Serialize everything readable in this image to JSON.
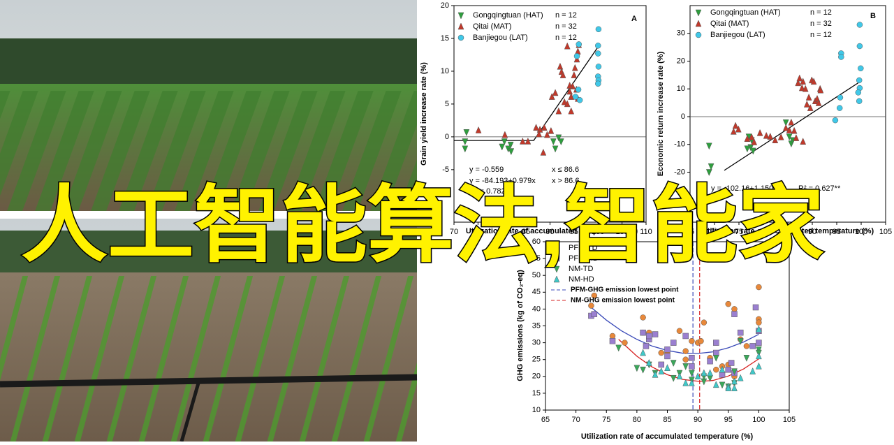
{
  "overlay_text": "人工智能算法,智能家",
  "chart_data": [
    {
      "type": "scatter",
      "panel_label": "A",
      "x_label": "Utilization rate of accumulated temperature (%)",
      "y_label": "Grain yield increase rate (%)",
      "xlim": [
        70,
        110
      ],
      "xticks": [
        70,
        75,
        80,
        85,
        90,
        95,
        100,
        105,
        110
      ],
      "ylim": [
        -13,
        20
      ],
      "yticks": [
        -5,
        0,
        5,
        10,
        15,
        20
      ],
      "series": [
        {
          "name": "Gongqingtuan (HAT)",
          "n": "n = 12",
          "color": "#2e9e3e",
          "marker": "down",
          "x": [
            72.6,
            72.3,
            72.3,
            80.5,
            81.8,
            81.3,
            90.7,
            91.1,
            91.8,
            92.3,
            81.9,
            80.0
          ],
          "values": [
            0.7,
            -0.7,
            -1.8,
            -0.7,
            -1.2,
            -1.8,
            -0.7,
            -1.8,
            -0.1,
            -0.7,
            -2.2,
            -1.5
          ]
        },
        {
          "name": "Qitai (MAT)",
          "n": "n = 32",
          "color": "#c0392b",
          "marker": "up",
          "x": [
            75.1,
            80.6,
            84.3,
            85.4,
            87.1,
            87.9,
            88.8,
            89.4,
            90.2,
            88.6,
            91.1,
            92.1,
            92.4,
            93,
            93.6,
            94.1,
            94.4,
            94.7,
            95,
            95.5,
            95.6,
            95.8,
            96,
            94.4,
            95.2,
            94.1,
            92.7,
            90.4,
            91.8,
            93.6,
            95.8,
            87.7
          ],
          "values": [
            1,
            0.3,
            -0.7,
            -0.7,
            1.4,
            1.1,
            1.4,
            0.3,
            0.9,
            -2.4,
            6.7,
            10.7,
            9.9,
            5.3,
            13.8,
            6.9,
            3.9,
            7.7,
            9.4,
            7.2,
            11.8,
            5.8,
            14,
            6.1,
            10.5,
            7.8,
            9.4,
            6.1,
            3.9,
            5,
            13,
            0.4
          ]
        },
        {
          "name": "Banjiegou (LAT)",
          "n": "n = 12",
          "color": "#40c8e8",
          "marker": "circle",
          "x": [
            100.1,
            100,
            100,
            100.1,
            100,
            100.1,
            100,
            96,
            95.6,
            95.3,
            96.2,
            95.9
          ],
          "values": [
            16.4,
            13.9,
            12.7,
            10.7,
            9.2,
            8.6,
            8.1,
            14.1,
            12.3,
            6.1,
            5.6,
            7.2
          ]
        }
      ],
      "fit": {
        "color": "#000000",
        "x": [
          70,
          86.6,
          100
        ],
        "values": [
          -0.559,
          -0.559,
          13.707
        ]
      },
      "annotations": [
        "y = -0.559",
        "x ≤ 86.6",
        "y = -84.193+0.979x",
        "x > 86.6",
        "R² = 0.782**"
      ]
    },
    {
      "type": "scatter",
      "panel_label": "B",
      "x_label": "Utilization rate of accumulated temperature (%)",
      "y_label": "Economic return increase rate (%)",
      "xlim": [
        65,
        105
      ],
      "xticks": [
        65,
        70,
        75,
        80,
        85,
        90,
        95,
        100,
        105
      ],
      "ylim": [
        -38,
        40
      ],
      "yticks": [
        -20,
        -10,
        0,
        10,
        20,
        30
      ],
      "series": [
        {
          "name": "Gongqingtuan (HAT)",
          "n": "n = 12",
          "color": "#2e9e3e",
          "marker": "down",
          "x": [
            68.9,
            69.3,
            68.9,
            77,
            77.4,
            77.9,
            77.6,
            85.3,
            85.7,
            86,
            84.6,
            76.7
          ],
          "values": [
            -20,
            -17.9,
            -10.5,
            -7.2,
            -11,
            -12.3,
            -8.5,
            -7.2,
            -9.7,
            -8.5,
            -2.1,
            -11.5
          ]
        },
        {
          "name": "Qitai (MAT)",
          "n": "n = 32",
          "color": "#c0392b",
          "marker": "up",
          "x": [
            74.3,
            74.9,
            73.9,
            76.7,
            77.6,
            78.1,
            79.3,
            80.6,
            81.4,
            82.4,
            83.6,
            84.6,
            85.3,
            87.1,
            88.1,
            87.9,
            88.9,
            89.6,
            89.9,
            90.6,
            91,
            91.6,
            91.7,
            89.3,
            88.6,
            86.7,
            86.3,
            90.3,
            87.4,
            91.3,
            88.1,
            85.7
          ],
          "values": [
            -3.3,
            -4.6,
            -5.4,
            -8,
            -7.4,
            -9.2,
            -5.9,
            -6.9,
            -7.2,
            -8.5,
            -7.4,
            -4.1,
            -4.9,
            12.1,
            12.6,
            10.3,
            4.4,
            3.1,
            13.1,
            5.6,
            6.4,
            10,
            9.5,
            6.9,
            10,
            -7.7,
            -5.1,
            12.6,
            13.8,
            4.9,
            -9,
            -2.1
          ]
        },
        {
          "name": "Banjiegou (LAT)",
          "n": "n = 12",
          "color": "#40c8e8",
          "marker": "circle",
          "x": [
            99.7,
            99.7,
            99.9,
            99.6,
            99.7,
            99.4,
            99.6,
            95.9,
            95.9,
            95.6,
            94.7,
            95.7
          ],
          "values": [
            33.1,
            25.4,
            17.4,
            13.1,
            10.3,
            8.7,
            5.6,
            22.8,
            21.5,
            3.1,
            -1.3,
            6.9
          ]
        }
      ],
      "fit": {
        "color": "#000000",
        "x": [
          72,
          100
        ],
        "values": [
          -19.35,
          12.86
        ]
      },
      "annotations": [
        "y = -102.16+1.1502x",
        "R² = 0.627**"
      ]
    },
    {
      "type": "scatter",
      "x_label": "Utilization rate of accumulated temperature (%)",
      "y_label": "GHG emissions (kg of CO₂-eq)",
      "xlim": [
        65,
        105
      ],
      "xticks": [
        65,
        70,
        75,
        80,
        85,
        90,
        95,
        100,
        105
      ],
      "ylim": [
        10,
        60
      ],
      "yticks": [
        10,
        15,
        20,
        25,
        30,
        35,
        40,
        45,
        50,
        55,
        60
      ],
      "series": [
        {
          "name": "PFM-TD",
          "color": "#e8883a",
          "marker": "circle",
          "x": [
            73,
            72.5,
            76,
            78,
            81,
            81,
            82,
            84,
            85,
            87,
            88,
            88,
            89,
            90,
            91,
            90.5,
            92,
            93,
            94,
            95,
            95,
            96,
            96,
            100,
            100,
            100,
            97,
            98
          ],
          "values": [
            44,
            41,
            32,
            30,
            37.5,
            33,
            33,
            27,
            27,
            33.5,
            27.5,
            25,
            30.5,
            30,
            36,
            30.5,
            25.5,
            22,
            23,
            41.5,
            23.5,
            40,
            20,
            46.5,
            37,
            36,
            31,
            29
          ]
        },
        {
          "name": "PFM-HD",
          "color": "#9a7fd0",
          "marker": "square",
          "x": [
            72.5,
            73,
            76,
            81,
            82,
            81.5,
            82,
            83,
            86,
            85,
            85,
            88,
            89,
            89,
            92,
            93,
            93,
            94,
            95,
            95.5,
            96,
            96,
            99.5,
            100,
            100,
            97,
            99,
            84
          ],
          "values": [
            38,
            38.5,
            30.5,
            33,
            31,
            29,
            32,
            32.5,
            30,
            26,
            28,
            32,
            25.5,
            23,
            24.5,
            27,
            30,
            20.5,
            22,
            24,
            38.5,
            21,
            40.5,
            33.5,
            30,
            33,
            29,
            23.5
          ]
        },
        {
          "name": "NM-TD",
          "color": "#3aa85a",
          "marker": "down",
          "x": [
            77,
            80,
            81,
            82,
            83,
            86,
            86,
            87,
            88,
            89,
            89,
            91,
            92,
            93,
            94,
            95,
            96,
            96,
            97,
            98,
            100,
            100,
            91
          ],
          "values": [
            28.5,
            22.5,
            22,
            23.5,
            21,
            24,
            19.5,
            21,
            23,
            19,
            21,
            18.5,
            19.5,
            25.5,
            17.5,
            17,
            18,
            21.5,
            30.5,
            25.5,
            28,
            27,
            20
          ]
        },
        {
          "name": "NM-HD",
          "color": "#40c8c8",
          "marker": "up",
          "x": [
            81,
            82,
            83,
            84,
            85,
            87,
            88,
            89,
            90,
            91,
            92,
            93,
            94,
            95,
            95,
            96,
            96,
            97,
            100,
            100,
            100,
            99
          ],
          "values": [
            27,
            24,
            20.5,
            21.5,
            22.5,
            20,
            18,
            18,
            20,
            21,
            21,
            17.5,
            22,
            17,
            16.5,
            16.5,
            18.5,
            19.5,
            34,
            23,
            26,
            21.5
          ]
        }
      ],
      "curves": [
        {
          "color": "#3a4ab8",
          "x": [
            72.5,
            75,
            77.5,
            80,
            82.5,
            85,
            87.5,
            89.2,
            90,
            92.5,
            95,
            97.5,
            100
          ],
          "values": [
            40.5,
            36.7,
            33.5,
            31.0,
            29.0,
            27.7,
            26.9,
            26.8,
            26.8,
            27.3,
            28.5,
            30.2,
            32.5
          ]
        },
        {
          "color": "#d62020",
          "x": [
            77,
            80,
            82.5,
            85,
            87.5,
            90.3,
            92.5,
            95,
            97.5,
            100
          ],
          "values": [
            31.0,
            26.0,
            22.8,
            20.5,
            19.1,
            18.5,
            18.8,
            20.1,
            22.2,
            25.2
          ]
        }
      ],
      "reference_lines": [
        {
          "name": "PFM-GHG emission lowest point",
          "color": "#3a4ab8",
          "x": 89.2
        },
        {
          "name": "NM-GHG emission lowest point",
          "color": "#d62020",
          "x": 90.3
        }
      ]
    }
  ]
}
